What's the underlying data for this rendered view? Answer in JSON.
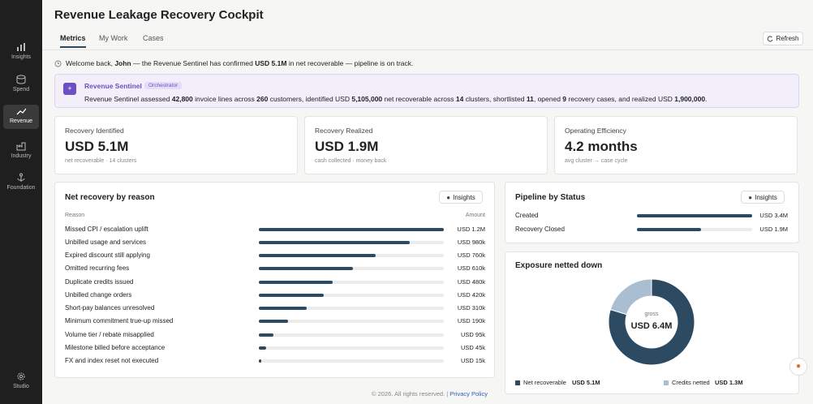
{
  "sidebar": {
    "items": [
      {
        "label": "Insights"
      },
      {
        "label": "Spend"
      },
      {
        "label": "Revenue",
        "active": true
      },
      {
        "label": "Industry"
      },
      {
        "label": "Foundation"
      }
    ],
    "footer": "Studio"
  },
  "header": {
    "title": "Revenue Leakage Recovery Cockpit",
    "tabs": [
      "Metrics",
      "My Work",
      "Cases"
    ],
    "refresh": "Refresh"
  },
  "welcome": [
    {
      "text": "Welcome back, "
    },
    {
      "text": "John",
      "bold": true
    },
    {
      "text": " — the Revenue Sentinel has confirmed "
    },
    {
      "text": "USD 5.1M",
      "bold": true
    },
    {
      "text": " in net recoverable — pipeline is on track."
    }
  ],
  "sentinel": {
    "name": "Revenue Sentinel",
    "badge": "Orchestrator",
    "message": [
      {
        "text": "Revenue Sentinel assessed "
      },
      {
        "text": "42,800",
        "bold": true
      },
      {
        "text": " invoice lines across "
      },
      {
        "text": "260",
        "bold": true
      },
      {
        "text": " customers, identified USD "
      },
      {
        "text": "5,105,000",
        "bold": true
      },
      {
        "text": " net recoverable across "
      },
      {
        "text": "14",
        "bold": true
      },
      {
        "text": " clusters, shortlisted "
      },
      {
        "text": "11",
        "bold": true
      },
      {
        "text": ", opened "
      },
      {
        "text": "9",
        "bold": true
      },
      {
        "text": " recovery cases, and realized USD "
      },
      {
        "text": "1,900,000",
        "bold": true
      },
      {
        "text": "."
      }
    ]
  },
  "kpis": [
    {
      "label": "Recovery Identified",
      "value": "USD 5.1M",
      "note": "net recoverable · 14 clusters"
    },
    {
      "label": "Recovery Realized",
      "value": "USD 1.9M",
      "note": "cash collected · money back"
    },
    {
      "label": "Operating Efficiency",
      "value": "4.2 months",
      "note": "avg cluster → case cycle"
    }
  ],
  "net_recovery": {
    "title": "Net recovery by reason",
    "insights": "Insights",
    "columns": [
      "Reason",
      "Amount"
    ],
    "color": "#2d4a63",
    "rows": [
      {
        "reason": "Missed CPI / escalation uplift",
        "amount": 1200000,
        "label": "USD 1.2M"
      },
      {
        "reason": "Unbilled usage and services",
        "amount": 980000,
        "label": "USD 980k"
      },
      {
        "reason": "Expired discount still applying",
        "amount": 760000,
        "label": "USD 760k"
      },
      {
        "reason": "Omitted recurring fees",
        "amount": 610000,
        "label": "USD 610k"
      },
      {
        "reason": "Duplicate credits issued",
        "amount": 480000,
        "label": "USD 480k"
      },
      {
        "reason": "Unbilled change orders",
        "amount": 420000,
        "label": "USD 420k"
      },
      {
        "reason": "Short-pay balances unresolved",
        "amount": 310000,
        "label": "USD 310k"
      },
      {
        "reason": "Minimum commitment true-up missed",
        "amount": 190000,
        "label": "USD 190k"
      },
      {
        "reason": "Volume tier / rebate misapplied",
        "amount": 95000,
        "label": "USD 95k"
      },
      {
        "reason": "Milestone billed before acceptance",
        "amount": 45000,
        "label": "USD 45k"
      },
      {
        "reason": "FX and index reset not executed",
        "amount": 15000,
        "label": "USD 15k"
      }
    ]
  },
  "pipeline": {
    "title": "Pipeline by Status",
    "insights": "Insights",
    "color": "#2d4a63",
    "rows": [
      {
        "status": "Created",
        "amount": 3400000,
        "label": "USD 3.4M"
      },
      {
        "status": "Recovery Closed",
        "amount": 1900000,
        "label": "USD 1.9M"
      }
    ]
  },
  "exposure": {
    "title": "Exposure netted down",
    "center_label": "gross",
    "center_value": "USD 6.4M",
    "slices": [
      {
        "name": "Net recoverable",
        "value": 5100000,
        "label": "USD 5.1M",
        "color": "#2d4a63"
      },
      {
        "name": "Credits netted",
        "value": 1300000,
        "label": "USD 1.3M",
        "color": "#a9bfd1"
      }
    ]
  },
  "footer": {
    "text": "© 2026. All rights reserved. |",
    "link": "Privacy Policy"
  }
}
